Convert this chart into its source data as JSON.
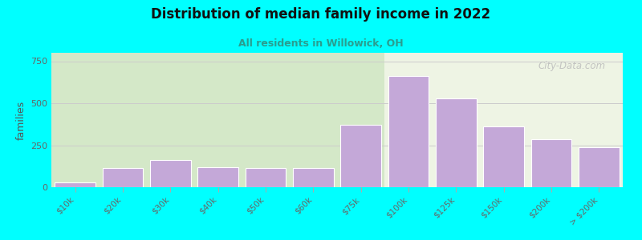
{
  "title": "Distribution of median family income in 2022",
  "subtitle": "All residents in Willowick, OH",
  "ylabel": "families",
  "background_outer": "#00ffff",
  "background_inner_left": "#d4e8c8",
  "background_inner_right": "#eef4e4",
  "bar_color": "#c4a8d8",
  "bar_edge_color": "#ffffff",
  "title_color": "#111111",
  "subtitle_color": "#2a9d8f",
  "ylabel_color": "#555555",
  "tick_color": "#666666",
  "categories": [
    "$10k",
    "$20k",
    "$30k",
    "$40k",
    "$50k",
    "$60k",
    "$75k",
    "$100k",
    "$125k",
    "$150k",
    "$200k",
    "> $200k"
  ],
  "values": [
    30,
    115,
    160,
    120,
    115,
    115,
    370,
    660,
    530,
    360,
    285,
    240
  ],
  "ylim": [
    0,
    800
  ],
  "yticks": [
    0,
    250,
    500,
    750
  ],
  "grid_color": "#cccccc",
  "watermark": "City-Data.com",
  "green_bg_bars": 7
}
